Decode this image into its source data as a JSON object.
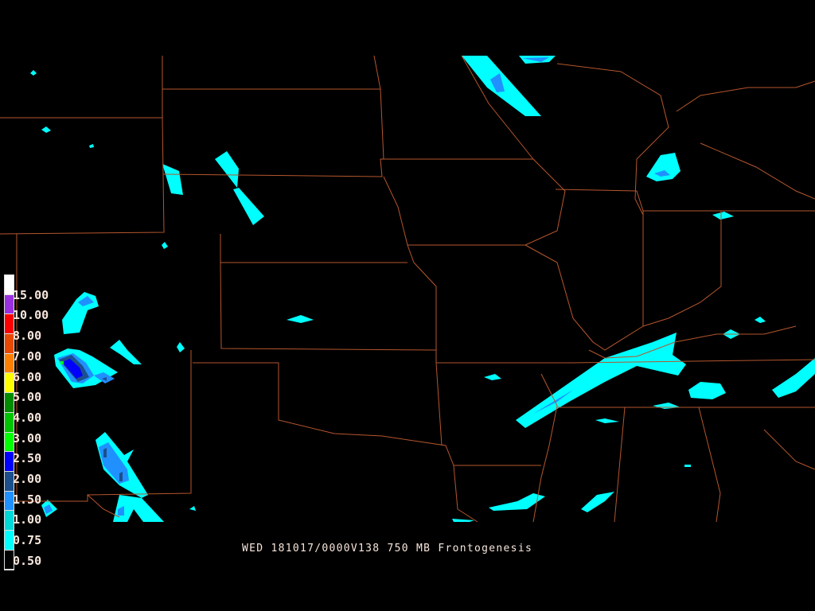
{
  "title": "WED 181017/0000V138 750 MB Frontogenesis",
  "legend": {
    "labels": [
      "15.00",
      "10.00",
      "8.00",
      "7.00",
      "6.00",
      "5.00",
      "4.00",
      "3.00",
      "2.50",
      "2.00",
      "1.50",
      "1.00",
      "0.75",
      "0.50"
    ],
    "colors": [
      "#ffffff",
      "#9a30e0",
      "#ff0000",
      "#e84800",
      "#ff8000",
      "#ffff00",
      "#008c00",
      "#00c400",
      "#00ff00",
      "#0000ff",
      "#1c4f8c",
      "#2090ff",
      "#00d8d8",
      "#00ffff",
      "#000000"
    ]
  },
  "colors": {
    "background": "#000000",
    "borders": "#b5562e",
    "text": "#f7e6dc"
  }
}
